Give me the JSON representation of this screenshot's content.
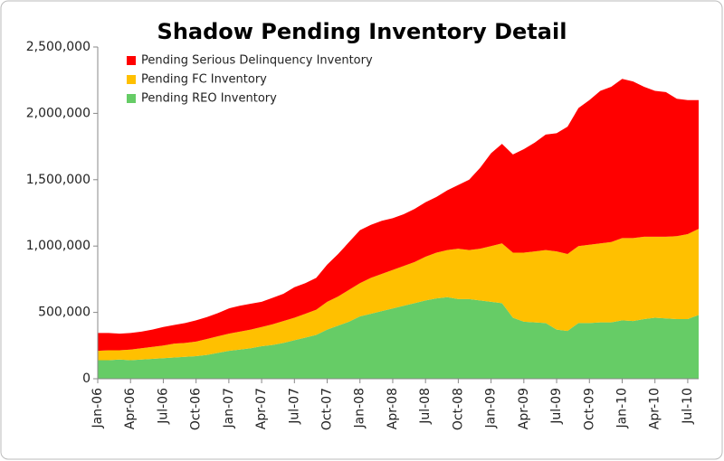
{
  "chart_data": {
    "type": "stacked-area",
    "title": "Shadow Pending Inventory Detail",
    "categories": [
      "Jan-06",
      null,
      null,
      "Apr-06",
      null,
      null,
      "Jul-06",
      null,
      null,
      "Oct-06",
      null,
      null,
      "Jan-07",
      null,
      null,
      "Apr-07",
      null,
      null,
      "Jul-07",
      null,
      null,
      "Oct-07",
      null,
      null,
      "Jan-08",
      null,
      null,
      "Apr-08",
      null,
      null,
      "Jul-08",
      null,
      null,
      "Oct-08",
      null,
      null,
      "Jan-09",
      null,
      null,
      "Apr-09",
      null,
      null,
      "Jul-09",
      null,
      null,
      "Oct-09",
      null,
      null,
      "Jan-10",
      null,
      null,
      "Apr-10",
      null,
      null,
      "Jul-10",
      null
    ],
    "series": [
      {
        "name": "Pending Serious Delinquency Inventory",
        "color": "#ff0000",
        "values": [
          135000,
          130000,
          125000,
          125000,
          125000,
          130000,
          140000,
          140000,
          150000,
          160000,
          165000,
          175000,
          190000,
          195000,
          195000,
          190000,
          200000,
          205000,
          230000,
          230000,
          240000,
          280000,
          320000,
          360000,
          400000,
          400000,
          400000,
          390000,
          390000,
          400000,
          410000,
          420000,
          450000,
          480000,
          530000,
          610000,
          700000,
          750000,
          740000,
          780000,
          820000,
          870000,
          890000,
          960000,
          1040000,
          1090000,
          1150000,
          1170000,
          1200000,
          1180000,
          1130000,
          1100000,
          1090000,
          1035000,
          1010000,
          970000
        ]
      },
      {
        "name": "Pending FC Inventory",
        "color": "#ffc000",
        "values": [
          70000,
          75000,
          70000,
          80000,
          85000,
          90000,
          95000,
          105000,
          105000,
          110000,
          120000,
          125000,
          130000,
          135000,
          140000,
          145000,
          155000,
          165000,
          170000,
          180000,
          190000,
          210000,
          220000,
          240000,
          250000,
          270000,
          280000,
          290000,
          300000,
          310000,
          330000,
          345000,
          355000,
          380000,
          370000,
          390000,
          420000,
          450000,
          490000,
          520000,
          535000,
          550000,
          590000,
          580000,
          580000,
          590000,
          595000,
          605000,
          620000,
          625000,
          620000,
          610000,
          615000,
          625000,
          640000,
          650000
        ]
      },
      {
        "name": "Pending REO Inventory",
        "color": "#66cc66",
        "values": [
          140000,
          140000,
          145000,
          140000,
          145000,
          150000,
          155000,
          160000,
          165000,
          170000,
          180000,
          195000,
          210000,
          220000,
          230000,
          245000,
          255000,
          270000,
          290000,
          310000,
          330000,
          370000,
          400000,
          430000,
          470000,
          490000,
          510000,
          530000,
          550000,
          570000,
          590000,
          605000,
          615000,
          600000,
          600000,
          590000,
          580000,
          570000,
          460000,
          430000,
          425000,
          420000,
          370000,
          360000,
          420000,
          420000,
          425000,
          425000,
          440000,
          435000,
          450000,
          460000,
          455000,
          450000,
          450000,
          480000
        ]
      }
    ],
    "ylim": [
      0,
      2500000
    ],
    "yticks": [
      0,
      {
        "value": 500000,
        "label": "500,000"
      },
      {
        "value": 1000000,
        "label": "1,000,000"
      },
      {
        "value": 1500000,
        "label": "1,500,000"
      },
      {
        "value": 2000000,
        "label": "2,000,000"
      },
      {
        "value": 2500000,
        "label": "2,500,000"
      }
    ],
    "grid": false,
    "legend": "top-left"
  }
}
